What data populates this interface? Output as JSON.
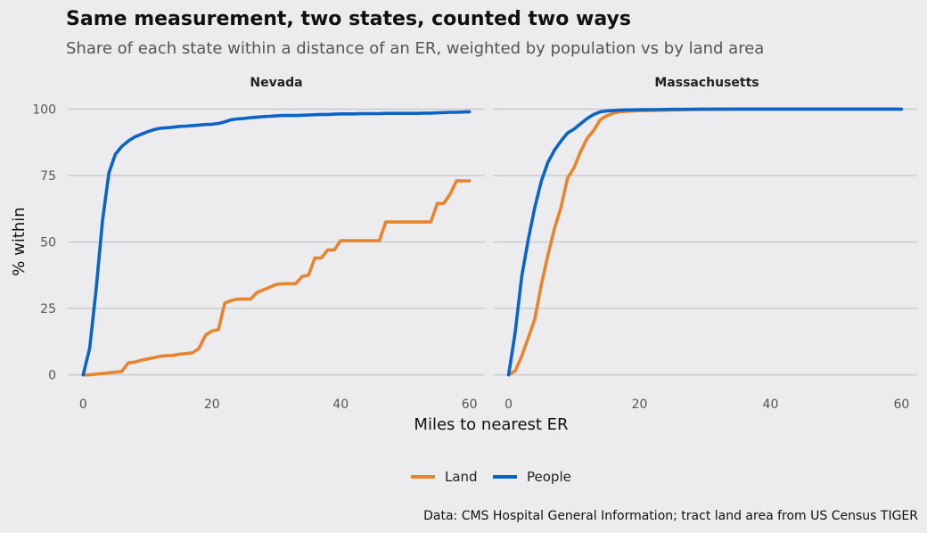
{
  "title": "Same measurement, two states, counted two ways",
  "subtitle": "Share of each state within a distance of an ER, weighted by population vs by land area",
  "caption": "Data: CMS Hospital General Information; tract land area from US Census TIGER",
  "colors": {
    "background": "#ecebee",
    "grid": "#c8c8cc",
    "land": "#e8842c",
    "people": "#0a64c8"
  },
  "chart_data": {
    "type": "line",
    "xlabel": "Miles to nearest ER",
    "ylabel": "% within",
    "xlim": [
      0,
      60
    ],
    "ylim": [
      0,
      100
    ],
    "x_ticks": [
      0,
      20,
      40,
      60
    ],
    "y_ticks": [
      0,
      25,
      50,
      75,
      100
    ],
    "grid": true,
    "legend_position": "bottom",
    "legend": [
      "Land",
      "People"
    ],
    "panels": [
      {
        "name": "Nevada",
        "series": [
          {
            "name": "Land",
            "color": "#e8842c",
            "x": [
              0,
              1,
              2,
              3,
              4,
              5,
              6,
              7,
              8,
              9,
              10,
              11,
              12,
              13,
              14,
              15,
              16,
              17,
              18,
              19,
              20,
              21,
              22,
              23,
              24,
              25,
              26,
              27,
              28,
              29,
              30,
              31,
              32,
              33,
              34,
              35,
              36,
              37,
              38,
              39,
              40,
              41,
              42,
              43,
              44,
              45,
              46,
              47,
              48,
              49,
              50,
              51,
              52,
              53,
              54,
              55,
              56,
              57,
              58,
              59,
              60
            ],
            "y": [
              0,
              0,
              0.3,
              0.5,
              0.8,
              1,
              1.3,
              4.5,
              4.8,
              5.5,
              6,
              6.5,
              7,
              7.2,
              7.3,
              7.8,
              8,
              8.3,
              10,
              15,
              16.5,
              17,
              27,
              28,
              28.5,
              28.5,
              28.5,
              31,
              32,
              33,
              34,
              34.3,
              34.3,
              34.3,
              37,
              37.5,
              44,
              44,
              47,
              47,
              50.5,
              50.5,
              50.5,
              50.5,
              50.5,
              50.5,
              50.5,
              57.5,
              57.5,
              57.5,
              57.5,
              57.5,
              57.5,
              57.5,
              57.5,
              64.5,
              64.5,
              68,
              73,
              73,
              73
            ]
          },
          {
            "name": "People",
            "color": "#0a64c8",
            "x": [
              0,
              1,
              2,
              3,
              4,
              5,
              6,
              7,
              8,
              9,
              10,
              11,
              12,
              13,
              14,
              15,
              16,
              17,
              18,
              19,
              20,
              21,
              22,
              23,
              24,
              25,
              26,
              27,
              28,
              29,
              30,
              31,
              32,
              33,
              34,
              35,
              36,
              37,
              38,
              39,
              40,
              41,
              42,
              43,
              44,
              45,
              46,
              47,
              48,
              49,
              50,
              51,
              52,
              53,
              54,
              55,
              56,
              57,
              58,
              59,
              60
            ],
            "y": [
              0,
              10,
              32,
              58,
              76,
              83,
              86,
              88,
              89.5,
              90.5,
              91.5,
              92.3,
              92.8,
              93,
              93.2,
              93.5,
              93.6,
              93.8,
              94,
              94.2,
              94.3,
              94.6,
              95.2,
              96,
              96.3,
              96.5,
              96.8,
              97,
              97.2,
              97.3,
              97.5,
              97.6,
              97.6,
              97.6,
              97.7,
              97.8,
              97.9,
              98,
              98,
              98.1,
              98.2,
              98.2,
              98.2,
              98.3,
              98.3,
              98.3,
              98.3,
              98.4,
              98.4,
              98.4,
              98.4,
              98.4,
              98.4,
              98.5,
              98.5,
              98.6,
              98.7,
              98.8,
              98.8,
              98.9,
              99
            ]
          }
        ]
      },
      {
        "name": "Massachusetts",
        "series": [
          {
            "name": "Land",
            "color": "#e8842c",
            "x": [
              0,
              1,
              2,
              3,
              4,
              5,
              6,
              7,
              8,
              9,
              10,
              11,
              12,
              13,
              14,
              15,
              16,
              17,
              18,
              19,
              20,
              22,
              25,
              30,
              35,
              40,
              45,
              50,
              55,
              60
            ],
            "y": [
              0,
              1.5,
              7,
              14,
              21,
              34,
              45,
              55,
              63,
              74,
              78,
              84,
              89,
              92,
              96,
              97.5,
              98.5,
              99,
              99.2,
              99.3,
              99.4,
              99.5,
              99.7,
              99.9,
              100,
              100,
              100,
              100,
              100,
              100
            ]
          },
          {
            "name": "People",
            "color": "#0a64c8",
            "x": [
              0,
              1,
              2,
              3,
              4,
              5,
              6,
              7,
              8,
              9,
              10,
              11,
              12,
              13,
              14,
              15,
              16,
              17,
              18,
              19,
              20,
              22,
              25,
              30,
              35,
              40,
              45,
              50,
              55,
              60
            ],
            "y": [
              0,
              16,
              37,
              51,
              63,
              73,
              80,
              84.5,
              88,
              91,
              92.5,
              94.5,
              96.5,
              98,
              99,
              99.3,
              99.5,
              99.6,
              99.7,
              99.7,
              99.8,
              99.8,
              99.9,
              100,
              100,
              100,
              100,
              100,
              100,
              100
            ]
          }
        ]
      }
    ]
  }
}
